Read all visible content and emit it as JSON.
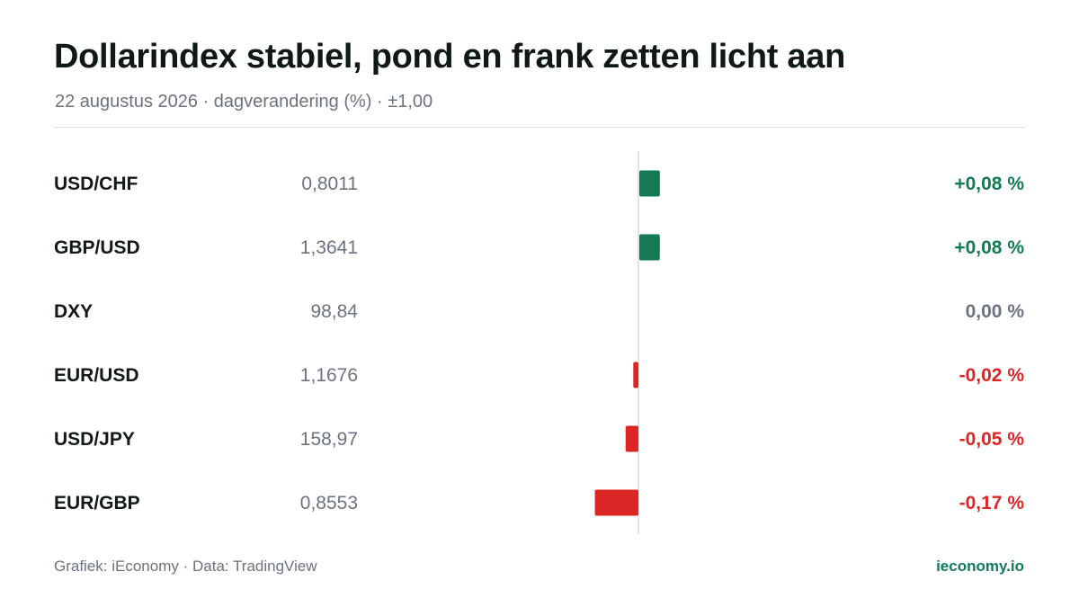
{
  "header": {
    "title": "Dollarindex stabiel, pond en frank zetten licht aan",
    "subtitle": "22 augustus 2026 · dagverandering (%) · ±1,00"
  },
  "footer": {
    "source": "Grafiek: iEconomy · Data: TradingView",
    "brand": "ieconomy.io"
  },
  "colors": {
    "positive": "#137a52",
    "negative": "#dc2626",
    "neutral": "#6b7280",
    "label": "#111a17",
    "price": "#6b7280",
    "axis": "#d9dcdf"
  },
  "chart_data": {
    "type": "bar",
    "orientation": "horizontal",
    "xlim": [
      -1.0,
      1.0
    ],
    "grid": false,
    "categories": [
      "USD/CHF",
      "GBP/USD",
      "DXY",
      "EUR/USD",
      "USD/JPY",
      "EUR/GBP"
    ],
    "prices": [
      "0,8011",
      "1,3641",
      "98,84",
      "1,1676",
      "158,97",
      "0,8553"
    ],
    "values": [
      0.08,
      0.08,
      0.0,
      -0.02,
      -0.05,
      -0.17
    ],
    "value_labels": [
      "+0,08 %",
      "+0,08 %",
      "0,00 %",
      "-0,02 %",
      "-0,05 %",
      "-0,17 %"
    ]
  }
}
